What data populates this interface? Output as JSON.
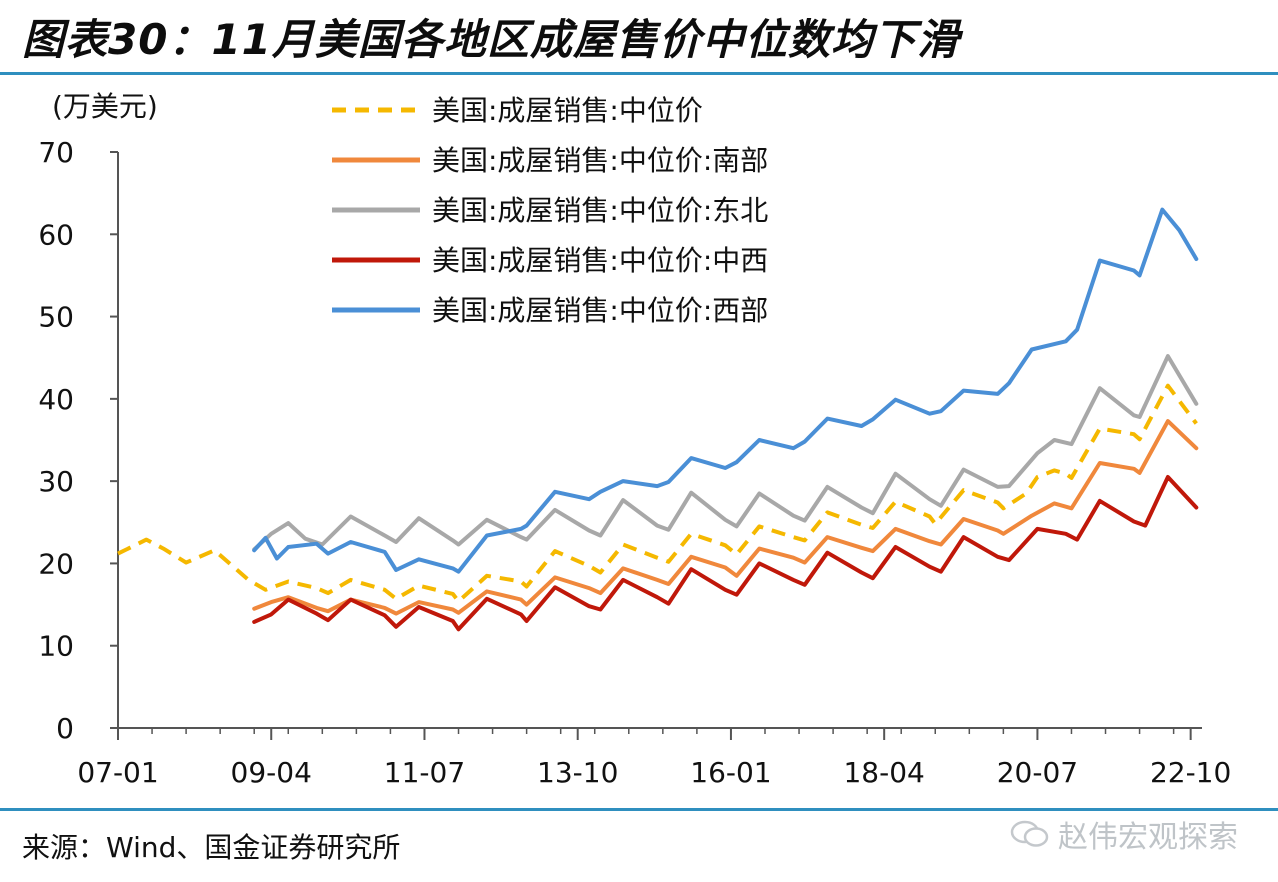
{
  "title": "图表30：11月美国各地区成屋售价中位数均下滑",
  "source": "来源：Wind、国金证券研究所",
  "watermark": "赵伟宏观探索",
  "chart_data": {
    "type": "line",
    "ylabel": "(万美元)",
    "ylim": [
      0,
      70
    ],
    "yticks": [
      "0",
      "10",
      "20",
      "30",
      "40",
      "50",
      "60",
      "70"
    ],
    "xlim": [
      "2007-01",
      "2022-12"
    ],
    "xticks": [
      "07-01",
      "09-04",
      "11-07",
      "13-10",
      "16-01",
      "18-04",
      "20-07",
      "22-10"
    ],
    "grid": false,
    "legend_position": "top-left",
    "series": [
      {
        "name": "美国:成屋销售:中位价",
        "color": "#F5B800",
        "dash": true,
        "points": [
          [
            "2007-01",
            21.2
          ],
          [
            "2007-06",
            22.9
          ],
          [
            "2007-09",
            21.8
          ],
          [
            "2008-01",
            20.1
          ],
          [
            "2008-06",
            21.6
          ],
          [
            "2008-12",
            18.0
          ],
          [
            "2009-03",
            16.8
          ],
          [
            "2009-07",
            17.8
          ],
          [
            "2009-12",
            17.0
          ],
          [
            "2010-02",
            16.4
          ],
          [
            "2010-06",
            18.0
          ],
          [
            "2010-12",
            16.8
          ],
          [
            "2011-02",
            15.7
          ],
          [
            "2011-06",
            17.3
          ],
          [
            "2011-12",
            16.3
          ],
          [
            "2012-01",
            15.4
          ],
          [
            "2012-06",
            18.5
          ],
          [
            "2012-12",
            17.8
          ],
          [
            "2013-01",
            17.2
          ],
          [
            "2013-06",
            21.5
          ],
          [
            "2013-12",
            19.7
          ],
          [
            "2014-02",
            18.9
          ],
          [
            "2014-06",
            22.3
          ],
          [
            "2014-12",
            20.7
          ],
          [
            "2015-02",
            20.2
          ],
          [
            "2015-06",
            23.6
          ],
          [
            "2015-12",
            22.2
          ],
          [
            "2016-02",
            21.1
          ],
          [
            "2016-06",
            24.5
          ],
          [
            "2016-12",
            23.2
          ],
          [
            "2017-02",
            22.8
          ],
          [
            "2017-06",
            26.2
          ],
          [
            "2017-12",
            24.7
          ],
          [
            "2018-02",
            24.3
          ],
          [
            "2018-06",
            27.5
          ],
          [
            "2018-12",
            25.7
          ],
          [
            "2019-01",
            24.8
          ],
          [
            "2019-06",
            28.9
          ],
          [
            "2019-12",
            27.4
          ],
          [
            "2020-01",
            26.7
          ],
          [
            "2020-05",
            28.5
          ],
          [
            "2020-07",
            30.5
          ],
          [
            "2020-10",
            31.3
          ],
          [
            "2020-12",
            30.9
          ],
          [
            "2021-01",
            30.4
          ],
          [
            "2021-06",
            36.4
          ],
          [
            "2021-12",
            35.7
          ],
          [
            "2022-01",
            35.1
          ],
          [
            "2022-06",
            41.6
          ],
          [
            "2022-11",
            37.0
          ]
        ]
      },
      {
        "name": "美国:成屋销售:中位价:南部",
        "color": "#F0883C",
        "dash": false,
        "points": [
          [
            "2009-01",
            14.5
          ],
          [
            "2009-04",
            15.3
          ],
          [
            "2009-07",
            15.9
          ],
          [
            "2009-12",
            14.6
          ],
          [
            "2010-02",
            14.2
          ],
          [
            "2010-06",
            15.6
          ],
          [
            "2010-12",
            14.6
          ],
          [
            "2011-02",
            13.9
          ],
          [
            "2011-06",
            15.3
          ],
          [
            "2011-12",
            14.4
          ],
          [
            "2012-01",
            14.0
          ],
          [
            "2012-06",
            16.6
          ],
          [
            "2012-12",
            15.6
          ],
          [
            "2013-01",
            15.0
          ],
          [
            "2013-06",
            18.3
          ],
          [
            "2013-12",
            17.0
          ],
          [
            "2014-02",
            16.4
          ],
          [
            "2014-06",
            19.4
          ],
          [
            "2014-12",
            18.0
          ],
          [
            "2015-02",
            17.5
          ],
          [
            "2015-06",
            20.8
          ],
          [
            "2015-12",
            19.5
          ],
          [
            "2016-02",
            18.5
          ],
          [
            "2016-06",
            21.8
          ],
          [
            "2016-12",
            20.7
          ],
          [
            "2017-02",
            20.1
          ],
          [
            "2017-06",
            23.2
          ],
          [
            "2017-12",
            21.9
          ],
          [
            "2018-02",
            21.5
          ],
          [
            "2018-06",
            24.2
          ],
          [
            "2018-12",
            22.7
          ],
          [
            "2019-02",
            22.3
          ],
          [
            "2019-06",
            25.4
          ],
          [
            "2019-12",
            24.0
          ],
          [
            "2020-01",
            23.6
          ],
          [
            "2020-06",
            25.8
          ],
          [
            "2020-10",
            27.3
          ],
          [
            "2021-01",
            26.7
          ],
          [
            "2021-06",
            32.2
          ],
          [
            "2021-12",
            31.5
          ],
          [
            "2022-01",
            31.0
          ],
          [
            "2022-06",
            37.3
          ],
          [
            "2022-11",
            34.0
          ]
        ]
      },
      {
        "name": "美国:成屋销售:中位价:东北",
        "color": "#A8A8A8",
        "dash": false,
        "points": [
          [
            "2009-01",
            21.7
          ],
          [
            "2009-04",
            23.6
          ],
          [
            "2009-07",
            24.9
          ],
          [
            "2009-10",
            23.0
          ],
          [
            "2010-01",
            22.3
          ],
          [
            "2010-06",
            25.7
          ],
          [
            "2010-12",
            23.4
          ],
          [
            "2011-02",
            22.6
          ],
          [
            "2011-06",
            25.5
          ],
          [
            "2011-12",
            22.8
          ],
          [
            "2012-01",
            22.3
          ],
          [
            "2012-06",
            25.3
          ],
          [
            "2012-12",
            23.2
          ],
          [
            "2013-01",
            22.9
          ],
          [
            "2013-06",
            26.5
          ],
          [
            "2013-12",
            24.0
          ],
          [
            "2014-02",
            23.4
          ],
          [
            "2014-06",
            27.7
          ],
          [
            "2014-12",
            24.6
          ],
          [
            "2015-02",
            24.1
          ],
          [
            "2015-06",
            28.6
          ],
          [
            "2015-12",
            25.3
          ],
          [
            "2016-02",
            24.5
          ],
          [
            "2016-06",
            28.5
          ],
          [
            "2016-12",
            25.8
          ],
          [
            "2017-02",
            25.2
          ],
          [
            "2017-06",
            29.3
          ],
          [
            "2017-12",
            26.8
          ],
          [
            "2018-02",
            26.1
          ],
          [
            "2018-06",
            30.9
          ],
          [
            "2018-12",
            27.8
          ],
          [
            "2019-02",
            27.0
          ],
          [
            "2019-06",
            31.4
          ],
          [
            "2019-12",
            29.3
          ],
          [
            "2020-02",
            29.4
          ],
          [
            "2020-07",
            33.4
          ],
          [
            "2020-10",
            35.0
          ],
          [
            "2021-01",
            34.5
          ],
          [
            "2021-06",
            41.3
          ],
          [
            "2021-12",
            38.0
          ],
          [
            "2022-01",
            37.8
          ],
          [
            "2022-06",
            45.2
          ],
          [
            "2022-11",
            39.4
          ]
        ]
      },
      {
        "name": "美国:成屋销售:中位价:中西",
        "color": "#C0180A",
        "dash": false,
        "points": [
          [
            "2009-01",
            12.9
          ],
          [
            "2009-04",
            13.8
          ],
          [
            "2009-07",
            15.6
          ],
          [
            "2009-12",
            13.9
          ],
          [
            "2010-02",
            13.1
          ],
          [
            "2010-06",
            15.6
          ],
          [
            "2010-12",
            13.7
          ],
          [
            "2011-02",
            12.3
          ],
          [
            "2011-06",
            14.7
          ],
          [
            "2011-12",
            13.0
          ],
          [
            "2012-01",
            12.0
          ],
          [
            "2012-06",
            15.7
          ],
          [
            "2012-12",
            13.8
          ],
          [
            "2013-01",
            13.0
          ],
          [
            "2013-06",
            17.1
          ],
          [
            "2013-12",
            14.8
          ],
          [
            "2014-02",
            14.4
          ],
          [
            "2014-06",
            18.0
          ],
          [
            "2014-12",
            15.9
          ],
          [
            "2015-02",
            15.1
          ],
          [
            "2015-06",
            19.3
          ],
          [
            "2015-12",
            16.8
          ],
          [
            "2016-02",
            16.2
          ],
          [
            "2016-06",
            20.0
          ],
          [
            "2016-12",
            18.0
          ],
          [
            "2017-02",
            17.4
          ],
          [
            "2017-06",
            21.3
          ],
          [
            "2017-12",
            18.9
          ],
          [
            "2018-02",
            18.2
          ],
          [
            "2018-06",
            22.0
          ],
          [
            "2018-12",
            19.6
          ],
          [
            "2019-02",
            19.0
          ],
          [
            "2019-06",
            23.2
          ],
          [
            "2019-12",
            20.8
          ],
          [
            "2020-02",
            20.4
          ],
          [
            "2020-07",
            24.2
          ],
          [
            "2020-12",
            23.6
          ],
          [
            "2021-02",
            22.9
          ],
          [
            "2021-06",
            27.6
          ],
          [
            "2021-12",
            25.1
          ],
          [
            "2022-02",
            24.6
          ],
          [
            "2022-06",
            30.5
          ],
          [
            "2022-11",
            26.8
          ]
        ]
      },
      {
        "name": "美国:成屋销售:中位价:西部",
        "color": "#4A8FD6",
        "dash": false,
        "points": [
          [
            "2009-01",
            21.6
          ],
          [
            "2009-03",
            23.1
          ],
          [
            "2009-05",
            20.6
          ],
          [
            "2009-07",
            22.0
          ],
          [
            "2009-12",
            22.4
          ],
          [
            "2010-02",
            21.2
          ],
          [
            "2010-06",
            22.6
          ],
          [
            "2010-12",
            21.4
          ],
          [
            "2011-02",
            19.2
          ],
          [
            "2011-06",
            20.5
          ],
          [
            "2011-12",
            19.4
          ],
          [
            "2012-01",
            19.0
          ],
          [
            "2012-06",
            23.4
          ],
          [
            "2012-12",
            24.2
          ],
          [
            "2013-01",
            24.6
          ],
          [
            "2013-06",
            28.7
          ],
          [
            "2013-12",
            27.8
          ],
          [
            "2014-02",
            28.7
          ],
          [
            "2014-06",
            30.0
          ],
          [
            "2014-12",
            29.4
          ],
          [
            "2015-02",
            29.9
          ],
          [
            "2015-06",
            32.8
          ],
          [
            "2015-12",
            31.6
          ],
          [
            "2016-02",
            32.3
          ],
          [
            "2016-06",
            35.0
          ],
          [
            "2016-12",
            34.0
          ],
          [
            "2017-02",
            34.8
          ],
          [
            "2017-06",
            37.6
          ],
          [
            "2017-12",
            36.7
          ],
          [
            "2018-02",
            37.5
          ],
          [
            "2018-06",
            39.9
          ],
          [
            "2018-12",
            38.2
          ],
          [
            "2019-02",
            38.5
          ],
          [
            "2019-06",
            41.0
          ],
          [
            "2019-12",
            40.6
          ],
          [
            "2020-02",
            41.9
          ],
          [
            "2020-06",
            46.0
          ],
          [
            "2020-12",
            47.0
          ],
          [
            "2021-02",
            48.4
          ],
          [
            "2021-06",
            56.8
          ],
          [
            "2021-12",
            55.6
          ],
          [
            "2022-01",
            55.0
          ],
          [
            "2022-05",
            63.0
          ],
          [
            "2022-08",
            60.5
          ],
          [
            "2022-11",
            57.0
          ]
        ]
      }
    ]
  }
}
